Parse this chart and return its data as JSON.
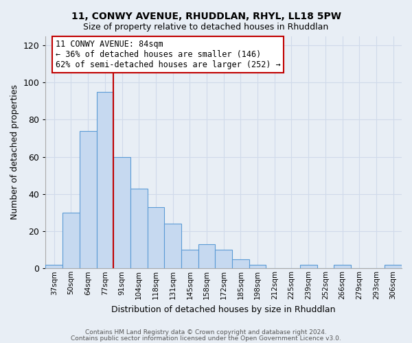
{
  "title1": "11, CONWY AVENUE, RHUDDLAN, RHYL, LL18 5PW",
  "title2": "Size of property relative to detached houses in Rhuddlan",
  "xlabel": "Distribution of detached houses by size in Rhuddlan",
  "ylabel": "Number of detached properties",
  "bar_labels": [
    "37sqm",
    "50sqm",
    "64sqm",
    "77sqm",
    "91sqm",
    "104sqm",
    "118sqm",
    "131sqm",
    "145sqm",
    "158sqm",
    "172sqm",
    "185sqm",
    "198sqm",
    "212sqm",
    "225sqm",
    "239sqm",
    "252sqm",
    "266sqm",
    "279sqm",
    "293sqm",
    "306sqm"
  ],
  "bar_values": [
    2,
    30,
    74,
    95,
    60,
    43,
    33,
    24,
    10,
    13,
    10,
    5,
    2,
    0,
    0,
    2,
    0,
    2,
    0,
    0,
    2
  ],
  "bar_color": "#c6d9f0",
  "bar_edge_color": "#5b9bd5",
  "marker_color": "#c00000",
  "marker_line_index": 3.5,
  "annotation_title": "11 CONWY AVENUE: 84sqm",
  "annotation_line1": "← 36% of detached houses are smaller (146)",
  "annotation_line2": "62% of semi-detached houses are larger (252) →",
  "annotation_box_color": "#ffffff",
  "annotation_box_edge": "#c00000",
  "ylim": [
    0,
    125
  ],
  "yticks": [
    0,
    20,
    40,
    60,
    80,
    100,
    120
  ],
  "footer1": "Contains HM Land Registry data © Crown copyright and database right 2024.",
  "footer2": "Contains public sector information licensed under the Open Government Licence v3.0.",
  "bg_color": "#e8eef5",
  "grid_color": "#d0daea"
}
